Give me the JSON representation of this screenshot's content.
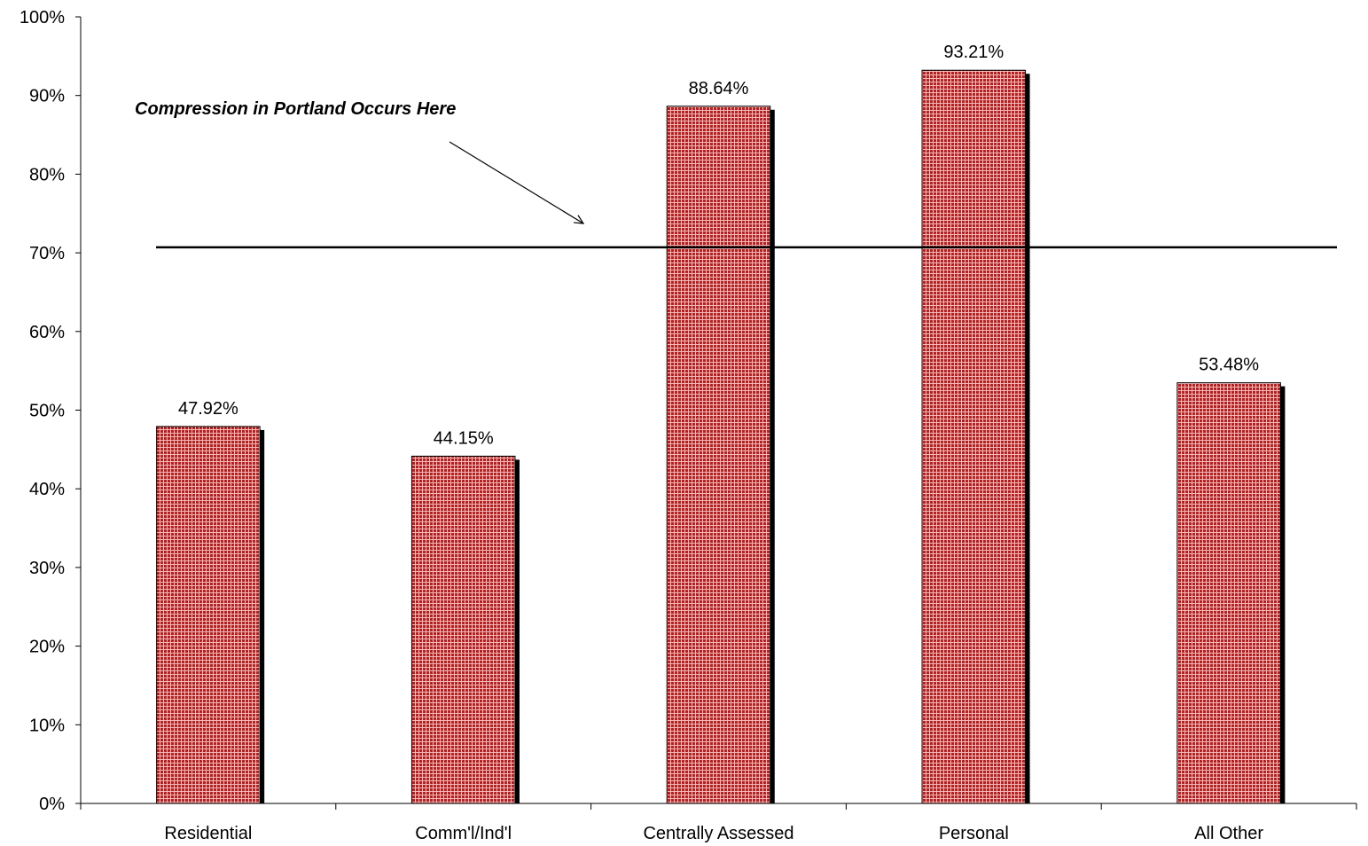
{
  "chart_data": {
    "type": "bar",
    "categories": [
      "Residential",
      "Comm'l/Ind'l",
      "Centrally Assessed",
      "Personal",
      "All Other"
    ],
    "values": [
      47.92,
      44.15,
      88.64,
      93.21,
      53.48
    ],
    "data_labels": [
      "47.92%",
      "44.15%",
      "88.64%",
      "93.21%",
      "53.48%"
    ],
    "ylim": [
      0,
      100
    ],
    "y_ticks": [
      0,
      10,
      20,
      30,
      40,
      50,
      60,
      70,
      80,
      90,
      100
    ],
    "y_tick_labels": [
      "0%",
      "10%",
      "20%",
      "30%",
      "40%",
      "50%",
      "60%",
      "70%",
      "80%",
      "90%",
      "100%"
    ],
    "reference_line": {
      "value": 70.7
    },
    "annotation": {
      "text": "Compression in Portland Occurs Here"
    },
    "grid": false,
    "legend": "none",
    "colors": {
      "bar_fill": "#b22222",
      "bar_pattern": "#f2b8b8",
      "bar_outline": "#000000",
      "shadow": "#000000"
    }
  }
}
